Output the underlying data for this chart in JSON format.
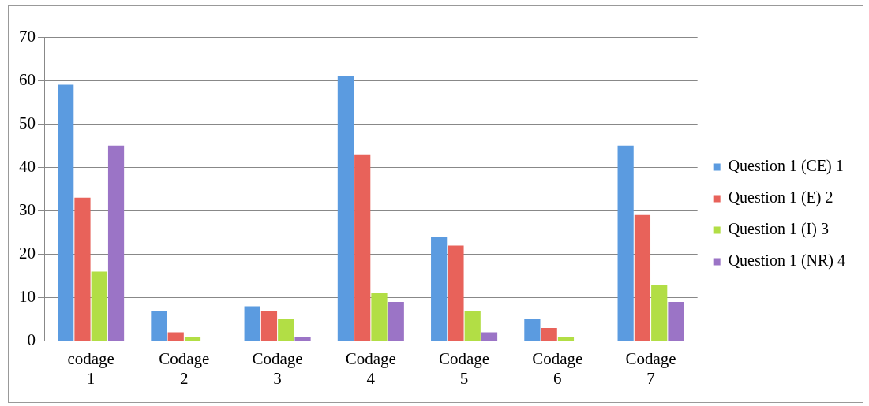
{
  "chart_data": {
    "type": "bar",
    "categories": [
      "codage 1",
      "Codage 2",
      "Codage 3",
      "Codage 4",
      "Codage 5",
      "Codage 6",
      "Codage 7"
    ],
    "series": [
      {
        "name": "Question 1 (CE) 1",
        "color": "#5b9be0",
        "values": [
          59,
          7,
          8,
          61,
          24,
          5,
          45
        ]
      },
      {
        "name": "Question 1 (E) 2",
        "color": "#e8625a",
        "values": [
          33,
          2,
          7,
          43,
          22,
          3,
          29
        ]
      },
      {
        "name": "Question 1 (I) 3",
        "color": "#b2de45",
        "values": [
          16,
          1,
          5,
          11,
          7,
          1,
          13
        ]
      },
      {
        "name": "Question 1 (NR) 4",
        "color": "#9b74c6",
        "values": [
          45,
          0,
          1,
          9,
          2,
          0,
          9
        ]
      }
    ],
    "ylim": [
      0,
      70
    ],
    "yticks": [
      0,
      10,
      20,
      30,
      40,
      50,
      60,
      70
    ],
    "grid": "y",
    "legend": "right"
  }
}
